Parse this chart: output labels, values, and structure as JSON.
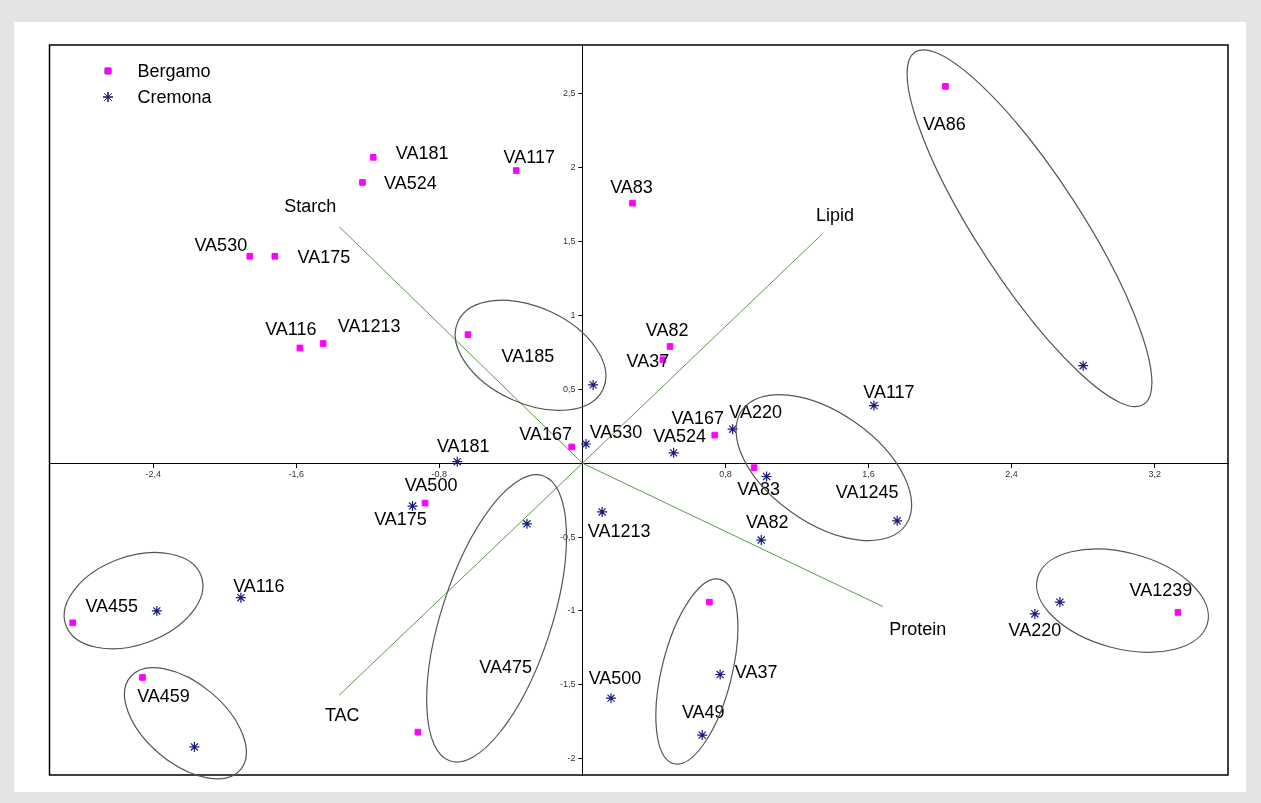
{
  "chart_data": {
    "type": "scatter",
    "xlim": [
      -2.98,
      3.61
    ],
    "ylim": [
      -2.11,
      2.83
    ],
    "xticks": [
      {
        "value": -2.4,
        "label": "-2,4"
      },
      {
        "value": -1.6,
        "label": "-1,6"
      },
      {
        "value": -0.8,
        "label": "-0,8"
      },
      {
        "value": 0.8,
        "label": "0,8"
      },
      {
        "value": 1.6,
        "label": "1,6"
      },
      {
        "value": 2.4,
        "label": "2,4"
      },
      {
        "value": 3.2,
        "label": "3,2"
      }
    ],
    "yticks": [
      -2,
      {
        "value": -1.5,
        "label": "-1,5"
      },
      -1,
      {
        "value": -0.5,
        "label": "-0,5"
      },
      {
        "value": 0.5,
        "label": "0,5"
      },
      1,
      {
        "value": 1.5,
        "label": "1,5"
      },
      2,
      {
        "value": 2.5,
        "label": "2,5"
      }
    ],
    "grid": false,
    "legend": "top left",
    "series": [
      {
        "name": "Bergamo",
        "marker": "square",
        "color": "#ff00ff",
        "x": [
          -1.17,
          -1.23,
          -0.37,
          0.28,
          -1.86,
          -1.72,
          -1.58,
          -1.45,
          -0.64,
          0.49,
          0.45,
          2.03,
          -0.06,
          0.74,
          0.96,
          -0.88,
          -0.92,
          0.71,
          3.33,
          -2.85,
          -2.46
        ],
        "values": [
          2.07,
          1.9,
          1.98,
          1.76,
          1.4,
          1.4,
          0.78,
          0.81,
          0.87,
          0.79,
          0.7,
          2.55,
          0.11,
          0.19,
          -0.03,
          -0.27,
          -1.82,
          -0.94,
          -1.01,
          -1.08,
          -1.45
        ]
      },
      {
        "name": "Cremona",
        "marker": "cross",
        "color": "#1a1a80",
        "x": [
          2.8,
          0.06,
          1.63,
          0.84,
          0.02,
          0.51,
          -0.7,
          1.03,
          -0.95,
          -0.31,
          0.11,
          1.76,
          1.0,
          2.67,
          2.53,
          -1.91,
          -2.38,
          0.77,
          0.16,
          0.67,
          -2.17
        ],
        "values": [
          0.66,
          0.53,
          0.39,
          0.23,
          0.13,
          0.07,
          0.01,
          -0.09,
          -0.29,
          -0.41,
          -0.33,
          -0.39,
          -0.52,
          -0.94,
          -1.02,
          -0.91,
          -1.0,
          -1.43,
          -1.59,
          -1.84,
          -1.92
        ]
      },
      {
        "type": "line",
        "marker": "none",
        "color": "#5a9a4a",
        "x": [
          -1.36,
          0,
          1.68,
          0,
          -1.36,
          0,
          1.34
        ],
        "values": [
          1.6,
          0,
          -0.97,
          null,
          -1.57,
          0,
          1.55
        ]
      }
    ],
    "annotations": [
      {
        "text": "Starch",
        "x": -1.36,
        "y": 1.6
      },
      {
        "text": "Lipid",
        "x": 1.34,
        "y": 1.55
      },
      {
        "text": "Protein",
        "x": 1.68,
        "y": -0.97
      },
      {
        "text": "TAC",
        "x": -1.36,
        "y": -1.57
      },
      {
        "text": "VA181",
        "x": -1.17,
        "y": 2.07
      },
      {
        "text": "VA524",
        "x": -1.23,
        "y": 1.9
      },
      {
        "text": "VA117",
        "x": -0.37,
        "y": 1.98
      },
      {
        "text": "VA83",
        "x": 0.28,
        "y": 1.76
      },
      {
        "text": "VA530",
        "x": -1.86,
        "y": 1.4
      },
      {
        "text": "VA175",
        "x": -1.72,
        "y": 1.4
      },
      {
        "text": "VA116",
        "x": -1.58,
        "y": 0.78
      },
      {
        "text": "VA1213",
        "x": -1.45,
        "y": 0.81
      },
      {
        "text": "VA185",
        "x": -0.64,
        "y": 0.87
      },
      {
        "text": "VA82",
        "x": 0.49,
        "y": 0.79
      },
      {
        "text": "VA37",
        "x": 0.45,
        "y": 0.7
      },
      {
        "text": "VA86",
        "x": 2.03,
        "y": 2.55
      },
      {
        "text": "VA167",
        "x": -0.06,
        "y": 0.11
      },
      {
        "text": "VA167",
        "x": 0.74,
        "y": 0.19
      },
      {
        "text": "VA500",
        "x": -0.88,
        "y": -0.27
      },
      "VA475",
      {
        "text": "VA1239",
        "x": 3.33,
        "y": -1.01
      },
      {
        "text": "VA455",
        "x": -2.85,
        "y": -1.08
      },
      {
        "text": "VA459",
        "x": -2.46,
        "y": -1.45
      },
      {
        "text": "VA117",
        "x": 1.63,
        "y": 0.39
      },
      {
        "text": "VA220",
        "x": 0.84,
        "y": 0.23
      },
      {
        "text": "VA530",
        "x": 0.02,
        "y": 0.13
      },
      {
        "text": "VA524",
        "x": 0.51,
        "y": 0.07
      },
      {
        "text": "VA181",
        "x": -0.7,
        "y": 0.01
      },
      {
        "text": "VA83",
        "x": 1.03,
        "y": -0.09
      },
      {
        "text": "VA175",
        "x": -0.95,
        "y": -0.29
      },
      {
        "text": "VA1213",
        "x": 0.11,
        "y": -0.33
      },
      {
        "text": "VA1245",
        "x": 1.76,
        "y": -0.39
      },
      {
        "text": "VA82",
        "x": 1.0,
        "y": -0.52
      },
      {
        "text": "VA220",
        "x": 2.53,
        "y": -1.02
      },
      {
        "text": "VA116",
        "x": -1.91,
        "y": -0.91
      },
      {
        "text": "VA37",
        "x": 0.77,
        "y": -1.43
      },
      {
        "text": "VA500",
        "x": 0.16,
        "y": -1.59
      },
      {
        "text": "VA49",
        "x": 0.67,
        "y": -1.84
      }
    ]
  }
}
